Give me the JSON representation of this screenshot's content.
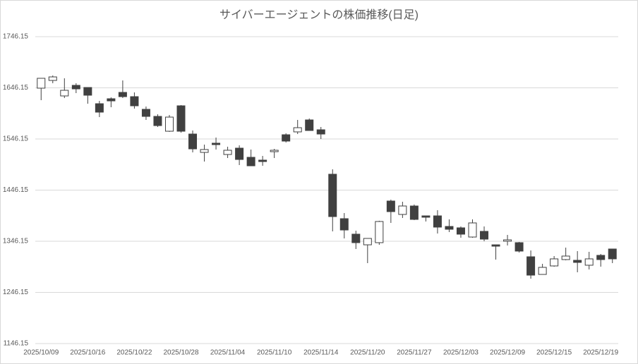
{
  "chart_data": {
    "type": "candlestick",
    "title": "サイバーエージェントの株価推移(日足)",
    "categories": [
      "2025/10/09",
      null,
      null,
      null,
      "2025/10/16",
      null,
      null,
      null,
      "2025/10/22",
      null,
      null,
      null,
      "2025/10/28",
      null,
      null,
      null,
      "2025/11/04",
      null,
      null,
      null,
      "2025/11/10",
      null,
      null,
      null,
      "2025/11/14",
      null,
      null,
      null,
      "2025/11/20",
      null,
      null,
      null,
      "2025/11/27",
      null,
      null,
      null,
      "2025/12/03",
      null,
      null,
      null,
      "2025/12/09",
      null,
      null,
      null,
      "2025/12/15",
      null,
      null,
      null,
      "2025/12/19",
      null
    ],
    "open": [
      1645.5,
      1660.6,
      1630.3,
      1651.0,
      1646.8,
      1615.1,
      1624.8,
      1637.2,
      1628.9,
      1604.1,
      1590.3,
      1561.3,
      1611.0,
      1555.8,
      1519.9,
      1537.9,
      1515.8,
      1528.2,
      1510.3,
      1504.8,
      1521.3,
      1554.4,
      1560.0,
      1583.4,
      1564.1,
      1477.2,
      1390.3,
      1360.0,
      1339.2,
      1343.4,
      1424.8,
      1398.6,
      1415.1,
      1395.8,
      1395.8,
      1375.1,
      1372.4,
      1354.4,
      1365.5,
      1339.2,
      1346.2,
      1343.4,
      1315.8,
      1281.3,
      1297.9,
      1310.3,
      1308.9,
      1299.3,
      1318.6,
      1331.0
    ],
    "high": [
      1664.8,
      1670.3,
      1664.8,
      1655.1,
      1646.8,
      1620.6,
      1627.5,
      1660.6,
      1637.2,
      1609.6,
      1594.4,
      1593.0,
      1612.4,
      1562.7,
      1535.1,
      1548.9,
      1531.0,
      1533.7,
      1525.5,
      1513.0,
      1526.8,
      1557.2,
      1583.4,
      1586.2,
      1569.6,
      1486.8,
      1401.3,
      1366.8,
      1351.7,
      1386.2,
      1427.5,
      1423.4,
      1417.9,
      1395.8,
      1406.9,
      1388.9,
      1375.1,
      1388.9,
      1375.1,
      1339.2,
      1358.6,
      1344.8,
      1328.2,
      1302.0,
      1317.2,
      1333.7,
      1326.9,
      1325.5,
      1321.3,
      1331.0
    ],
    "low": [
      1622.0,
      1655.1,
      1626.2,
      1635.8,
      1615.1,
      1588.9,
      1608.2,
      1626.2,
      1605.5,
      1583.4,
      1569.6,
      1560.0,
      1558.6,
      1519.9,
      1502.0,
      1525.5,
      1508.9,
      1495.1,
      1493.7,
      1493.7,
      1508.9,
      1539.3,
      1555.8,
      1562.7,
      1546.1,
      1365.5,
      1351.7,
      1331.0,
      1303.4,
      1339.2,
      1382.0,
      1391.7,
      1387.5,
      1384.8,
      1361.3,
      1364.1,
      1353.1,
      1353.1,
      1346.2,
      1310.3,
      1337.9,
      1324.1,
      1273.0,
      1281.3,
      1296.5,
      1308.9,
      1285.5,
      1291.0,
      1296.5,
      1303.4
    ],
    "close": [
      1664.8,
      1667.5,
      1641.3,
      1644.1,
      1631.7,
      1598.6,
      1620.6,
      1628.9,
      1611.0,
      1590.3,
      1572.3,
      1588.9,
      1561.3,
      1526.8,
      1525.5,
      1535.1,
      1524.1,
      1506.1,
      1493.7,
      1502.0,
      1524.1,
      1542.0,
      1568.2,
      1562.7,
      1555.8,
      1394.4,
      1368.2,
      1343.4,
      1351.7,
      1384.8,
      1404.1,
      1415.1,
      1388.9,
      1393.1,
      1373.8,
      1369.6,
      1360.0,
      1382.0,
      1350.3,
      1336.5,
      1348.9,
      1326.9,
      1279.9,
      1295.1,
      1311.7,
      1317.2,
      1304.8,
      1311.7,
      1310.3,
      1311.7
    ],
    "up_color": "#ffffff",
    "down_color": "#404040",
    "edge_color": "#404040",
    "ylim": [
      1146.15,
      1746.15
    ],
    "yticks": [
      1146.15,
      1246.15,
      1346.15,
      1446.15,
      1546.15,
      1646.15,
      1746.15
    ],
    "grid": true
  }
}
